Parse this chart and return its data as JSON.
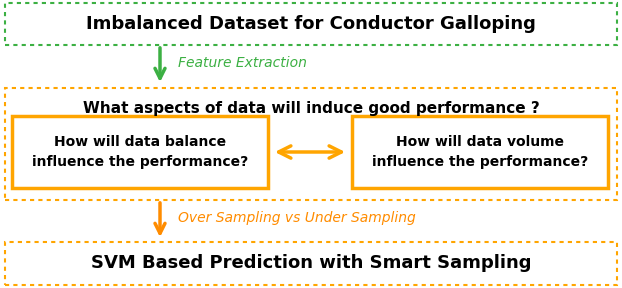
{
  "top_box_text": "Imbalanced Dataset for Conductor Galloping",
  "top_box_border_color": "#3cb043",
  "arrow1_color": "#3cb043",
  "arrow1_label": "Feature Extraction",
  "arrow1_label_color": "#3cb043",
  "middle_box_border_color": "#FFA500",
  "middle_question_text": "What aspects of data will induce good performance ?",
  "left_inner_box_text": "How will data balance\ninfluence the performance?",
  "right_inner_box_text": "How will data volume\ninfluence the performance?",
  "inner_box_border_color": "#FFA500",
  "double_arrow_color": "#FFA500",
  "arrow2_color": "#FF8C00",
  "arrow2_label": "Over Sampling vs Under Sampling",
  "arrow2_label_color": "#FF8C00",
  "bottom_box_text": "SVM Based Prediction with Smart Sampling",
  "bottom_box_border_color": "#FFA500",
  "bg_color": "#ffffff",
  "main_text_color": "#000000"
}
